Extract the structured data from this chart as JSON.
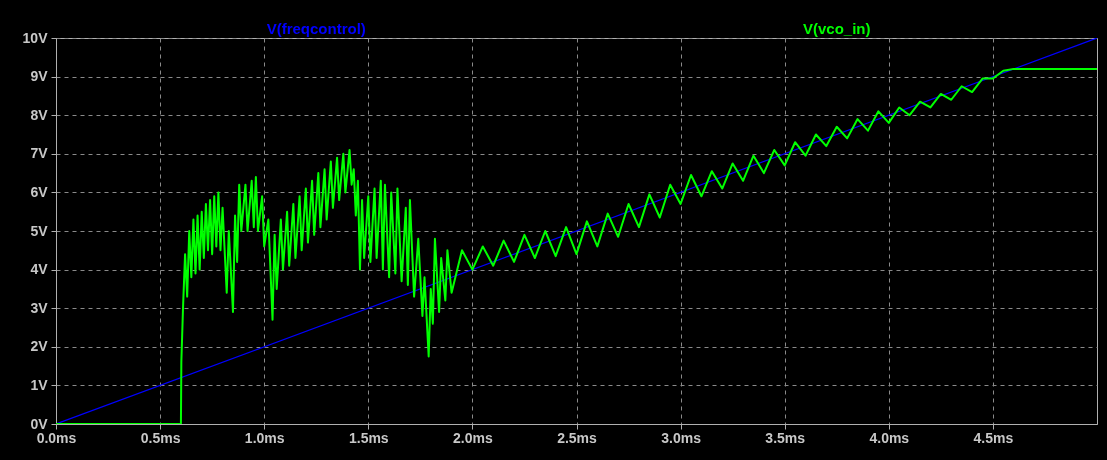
{
  "chart_data": {
    "type": "line",
    "legend": "top",
    "grid": true,
    "line_style": "solid",
    "xlim": [
      0,
      5
    ],
    "ylim": [
      0,
      10
    ],
    "xticks": [
      {
        "value": 0,
        "label": "0.0ms"
      },
      {
        "value": 0.5,
        "label": "0.5ms"
      },
      {
        "value": 1,
        "label": "1.0ms"
      },
      {
        "value": 1.5,
        "label": "1.5ms"
      },
      {
        "value": 2,
        "label": "2.0ms"
      },
      {
        "value": 2.5,
        "label": "2.5ms"
      },
      {
        "value": 3,
        "label": "3.0ms"
      },
      {
        "value": 3.5,
        "label": "3.5ms"
      },
      {
        "value": 4,
        "label": "4.0ms"
      },
      {
        "value": 4.5,
        "label": "4.5ms"
      }
    ],
    "yticks": [
      {
        "value": 0,
        "label": "0V"
      },
      {
        "value": 1,
        "label": "1V"
      },
      {
        "value": 2,
        "label": "2V"
      },
      {
        "value": 3,
        "label": "3V"
      },
      {
        "value": 4,
        "label": "4V"
      },
      {
        "value": 5,
        "label": "5V"
      },
      {
        "value": 6,
        "label": "6V"
      },
      {
        "value": 7,
        "label": "7V"
      },
      {
        "value": 8,
        "label": "8V"
      },
      {
        "value": 9,
        "label": "9V"
      },
      {
        "value": 10,
        "label": "10V"
      }
    ],
    "series": [
      {
        "name": "V(freqcontrol)",
        "color": "#0000ff",
        "x": [
          0,
          5
        ],
        "values": [
          0,
          10
        ]
      },
      {
        "name": "V(vco_in)",
        "color": "#00ff00",
        "x": [
          0,
          0.6,
          0.602,
          0.61,
          0.62,
          0.63,
          0.64,
          0.65,
          0.66,
          0.67,
          0.68,
          0.69,
          0.7,
          0.71,
          0.72,
          0.73,
          0.74,
          0.75,
          0.76,
          0.77,
          0.78,
          0.79,
          0.8,
          0.82,
          0.83,
          0.85,
          0.86,
          0.87,
          0.88,
          0.89,
          0.91,
          0.92,
          0.94,
          0.95,
          0.96,
          0.97,
          0.99,
          1.0,
          1.02,
          1.04,
          1.05,
          1.06,
          1.08,
          1.09,
          1.11,
          1.12,
          1.14,
          1.15,
          1.17,
          1.18,
          1.2,
          1.21,
          1.23,
          1.24,
          1.26,
          1.27,
          1.29,
          1.3,
          1.32,
          1.33,
          1.35,
          1.36,
          1.38,
          1.39,
          1.41,
          1.42,
          1.43,
          1.44,
          1.45,
          1.46,
          1.47,
          1.48,
          1.5,
          1.51,
          1.53,
          1.54,
          1.56,
          1.57,
          1.58,
          1.6,
          1.61,
          1.63,
          1.64,
          1.66,
          1.68,
          1.69,
          1.7,
          1.72,
          1.74,
          1.76,
          1.77,
          1.79,
          1.8,
          1.81,
          1.82,
          1.84,
          1.85,
          1.87,
          1.88,
          1.9,
          1.95,
          2.0,
          2.05,
          2.1,
          2.15,
          2.2,
          2.25,
          2.3,
          2.35,
          2.4,
          2.45,
          2.5,
          2.55,
          2.6,
          2.65,
          2.7,
          2.75,
          2.8,
          2.85,
          2.9,
          2.95,
          3.0,
          3.05,
          3.1,
          3.15,
          3.2,
          3.25,
          3.3,
          3.35,
          3.4,
          3.45,
          3.5,
          3.55,
          3.6,
          3.65,
          3.7,
          3.75,
          3.8,
          3.85,
          3.9,
          3.95,
          4.0,
          4.05,
          4.1,
          4.15,
          4.2,
          4.25,
          4.3,
          4.35,
          4.4,
          4.45,
          4.5,
          4.55,
          4.6,
          5.0
        ],
        "values": [
          0,
          0,
          1.6,
          3.0,
          4.4,
          3.3,
          5.0,
          3.8,
          5.3,
          3.9,
          5.4,
          4.0,
          5.5,
          4.3,
          5.7,
          4.5,
          5.8,
          4.4,
          5.9,
          4.6,
          6.0,
          4.5,
          5.6,
          3.4,
          5.0,
          2.9,
          5.4,
          4.2,
          6.2,
          5.0,
          6.2,
          5.0,
          6.3,
          5.1,
          6.4,
          5.0,
          5.9,
          4.6,
          5.3,
          2.7,
          4.9,
          3.5,
          5.3,
          4.0,
          5.5,
          4.1,
          5.7,
          4.3,
          5.9,
          4.5,
          6.1,
          4.7,
          6.3,
          4.9,
          6.5,
          5.1,
          6.6,
          5.3,
          6.8,
          5.6,
          6.9,
          5.8,
          7.0,
          6.0,
          7.1,
          6.2,
          6.6,
          5.4,
          6.3,
          4.0,
          5.8,
          4.3,
          5.9,
          4.2,
          6.1,
          4.3,
          6.3,
          4.0,
          6.2,
          3.8,
          6.0,
          3.9,
          6.1,
          3.7,
          5.6,
          3.6,
          5.8,
          3.3,
          4.8,
          2.8,
          3.8,
          1.75,
          3.5,
          2.6,
          4.8,
          2.9,
          4.3,
          3.2,
          4.5,
          3.4,
          4.5,
          4.0,
          4.6,
          4.1,
          4.75,
          4.2,
          4.9,
          4.3,
          5.0,
          4.35,
          5.1,
          4.4,
          5.25,
          4.6,
          5.45,
          4.85,
          5.7,
          5.1,
          5.95,
          5.35,
          6.2,
          5.7,
          6.45,
          5.9,
          6.55,
          6.1,
          6.75,
          6.3,
          6.95,
          6.5,
          7.1,
          6.7,
          7.3,
          6.95,
          7.5,
          7.2,
          7.7,
          7.4,
          7.9,
          7.6,
          8.1,
          7.8,
          8.2,
          8.0,
          8.35,
          8.2,
          8.55,
          8.4,
          8.75,
          8.6,
          8.95,
          8.95,
          9.15,
          9.2,
          9.2
        ]
      }
    ]
  }
}
